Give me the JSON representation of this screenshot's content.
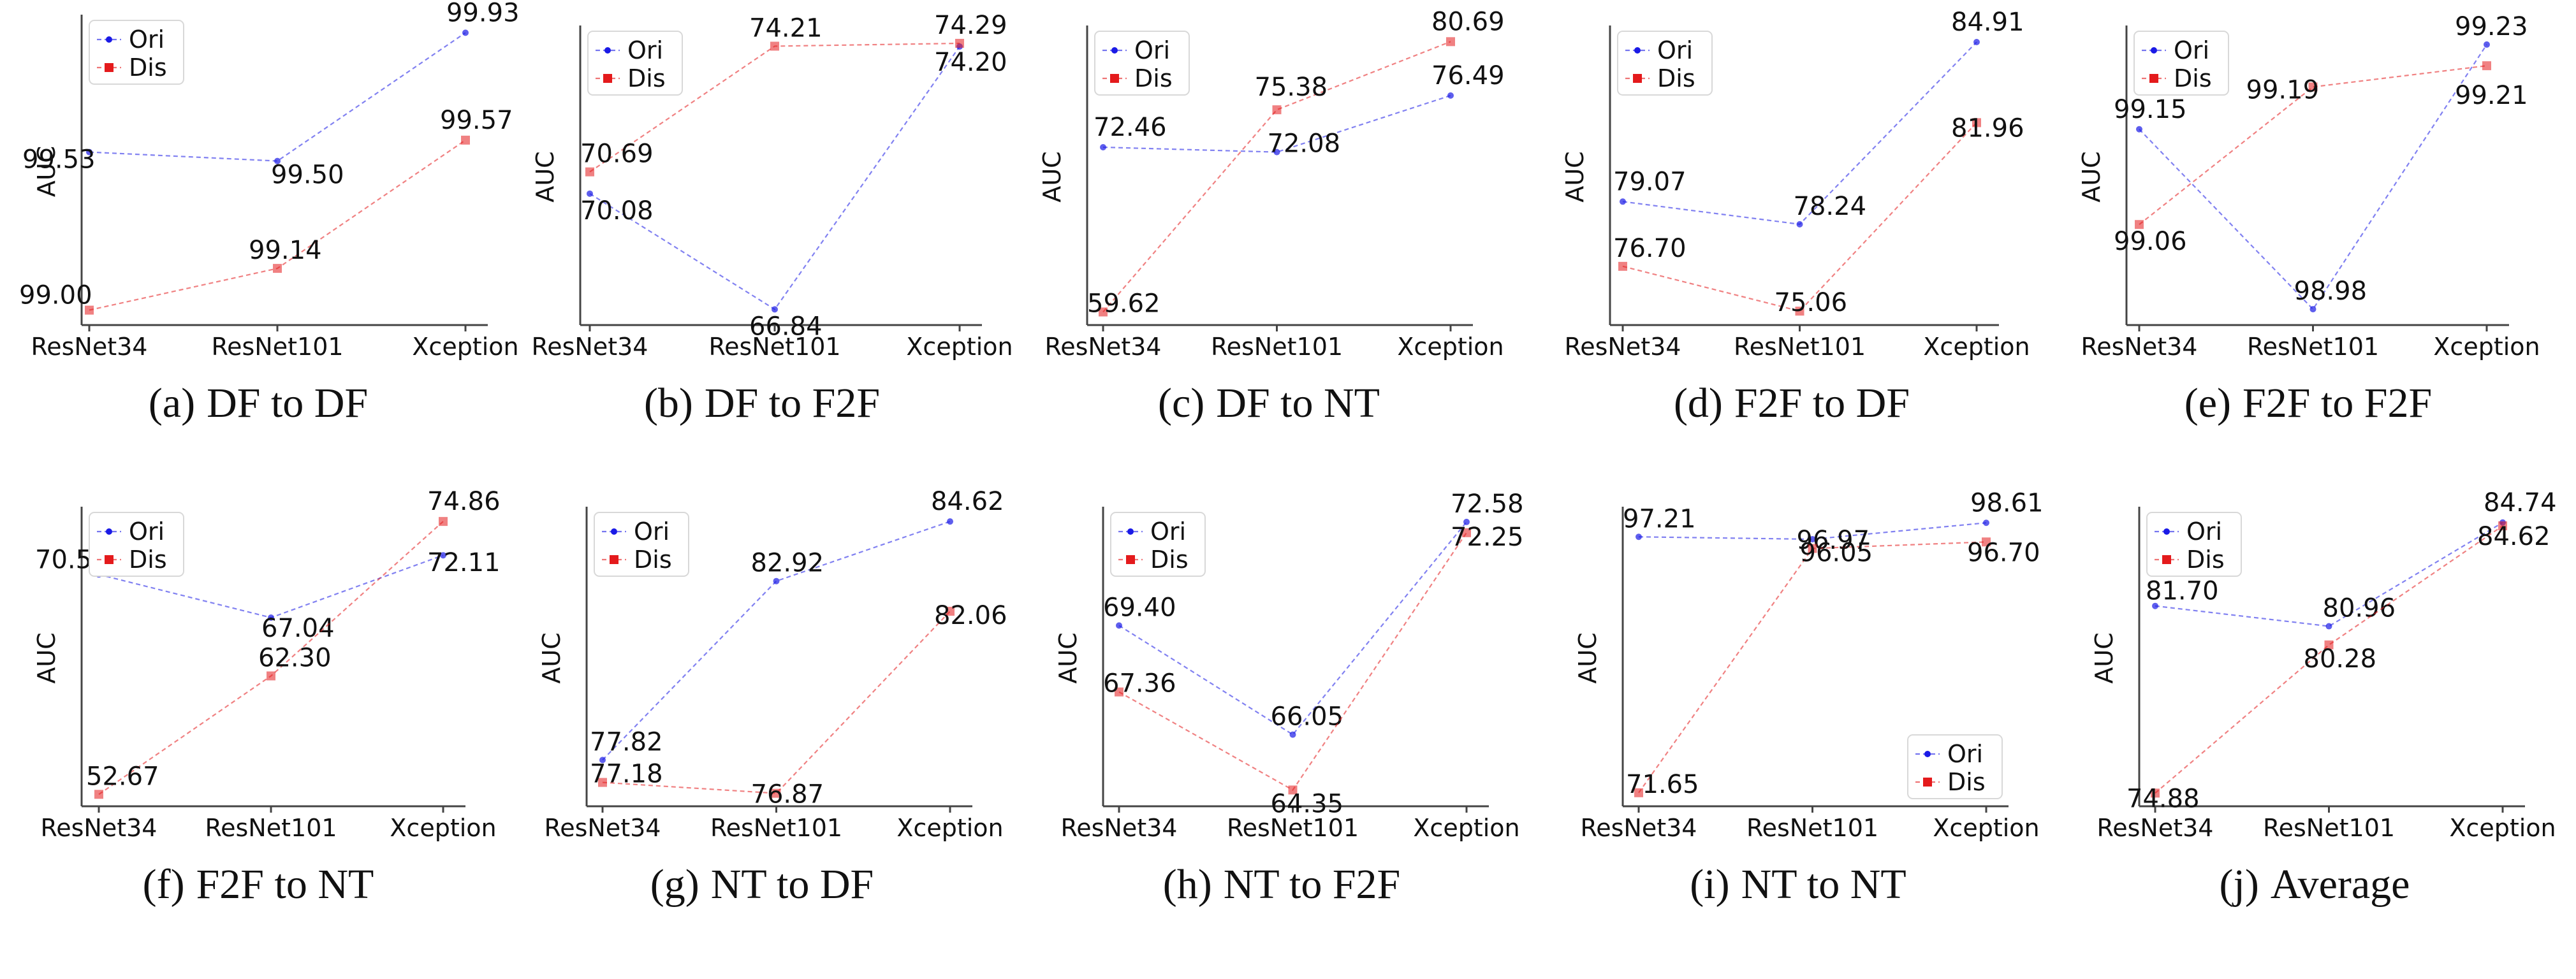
{
  "colors": {
    "ori": "#1a1ae6",
    "dis": "#e41a1c",
    "axis": "#444444",
    "text": "#111111"
  },
  "icons": {
    "ori_marker": "circle-dot",
    "dis_marker": "square"
  },
  "chart_data": [
    {
      "type": "line",
      "caption_letter": "(a)",
      "caption_text": "DF to DF",
      "ylabel": "AUC",
      "categories": [
        "ResNet34",
        "ResNet101",
        "Xception"
      ],
      "series": [
        {
          "name": "Ori",
          "values": [
            99.53,
            99.5,
            99.93
          ]
        },
        {
          "name": "Dis",
          "values": [
            99.0,
            99.14,
            99.57
          ]
        }
      ],
      "ylim": [
        98.95,
        99.98
      ],
      "legend": "top-left"
    },
    {
      "type": "line",
      "caption_letter": "(b)",
      "caption_text": "DF to F2F",
      "ylabel": "AUC",
      "categories": [
        "ResNet34",
        "ResNet101",
        "Xception"
      ],
      "series": [
        {
          "name": "Ori",
          "values": [
            70.08,
            66.84,
            74.2
          ]
        },
        {
          "name": "Dis",
          "values": [
            70.69,
            74.21,
            74.29
          ]
        }
      ],
      "ylim": [
        66.4,
        74.7
      ],
      "legend": "top-left"
    },
    {
      "type": "line",
      "caption_letter": "(c)",
      "caption_text": "DF to NT",
      "ylabel": "AUC",
      "categories": [
        "ResNet34",
        "ResNet101",
        "Xception"
      ],
      "series": [
        {
          "name": "Ori",
          "values": [
            72.46,
            72.08,
            76.49
          ]
        },
        {
          "name": "Dis",
          "values": [
            59.62,
            75.38,
            80.69
          ]
        }
      ],
      "ylim": [
        58.6,
        81.7
      ],
      "legend": "top-left"
    },
    {
      "type": "line",
      "caption_letter": "(d)",
      "caption_text": "F2F to DF",
      "ylabel": "AUC",
      "categories": [
        "ResNet34",
        "ResNet101",
        "Xception"
      ],
      "series": [
        {
          "name": "Ori",
          "values": [
            79.07,
            78.24,
            84.91
          ]
        },
        {
          "name": "Dis",
          "values": [
            76.7,
            75.06,
            81.96
          ]
        }
      ],
      "ylim": [
        74.55,
        85.4
      ],
      "legend": "top-left"
    },
    {
      "type": "line",
      "caption_letter": "(e)",
      "caption_text": "F2F to F2F",
      "ylabel": "AUC",
      "categories": [
        "ResNet34",
        "ResNet101",
        "Xception"
      ],
      "series": [
        {
          "name": "Ori",
          "values": [
            99.15,
            98.98,
            99.23
          ]
        },
        {
          "name": "Dis",
          "values": [
            99.06,
            99.19,
            99.21
          ]
        }
      ],
      "ylim": [
        98.965,
        99.245
      ],
      "legend": "top-left"
    },
    {
      "type": "line",
      "caption_letter": "(f)",
      "caption_text": "F2F to NT",
      "ylabel": "AUC",
      "categories": [
        "ResNet34",
        "ResNet101",
        "Xception"
      ],
      "series": [
        {
          "name": "Ori",
          "values": [
            70.55,
            67.04,
            72.11
          ]
        },
        {
          "name": "Dis",
          "values": [
            52.67,
            62.3,
            74.86
          ]
        }
      ],
      "ylim": [
        51.7,
        75.8
      ],
      "legend": "top-left"
    },
    {
      "type": "line",
      "caption_letter": "(g)",
      "caption_text": "NT to DF",
      "ylabel": "AUC",
      "categories": [
        "ResNet34",
        "ResNet101",
        "Xception"
      ],
      "series": [
        {
          "name": "Ori",
          "values": [
            77.82,
            82.92,
            84.62
          ]
        },
        {
          "name": "Dis",
          "values": [
            77.18,
            76.87,
            82.06
          ]
        }
      ],
      "ylim": [
        76.5,
        84.95
      ],
      "legend": "top-left"
    },
    {
      "type": "line",
      "caption_letter": "(h)",
      "caption_text": "NT to F2F",
      "ylabel": "AUC",
      "categories": [
        "ResNet34",
        "ResNet101",
        "Xception"
      ],
      "series": [
        {
          "name": "Ori",
          "values": [
            69.4,
            66.05,
            72.58
          ]
        },
        {
          "name": "Dis",
          "values": [
            67.36,
            64.35,
            72.25
          ]
        }
      ],
      "ylim": [
        63.85,
        72.95
      ],
      "legend": "top-left"
    },
    {
      "type": "line",
      "caption_letter": "(i)",
      "caption_text": "NT to NT",
      "ylabel": "AUC",
      "categories": [
        "ResNet34",
        "ResNet101",
        "Xception"
      ],
      "series": [
        {
          "name": "Ori",
          "values": [
            97.21,
            96.97,
            98.61
          ]
        },
        {
          "name": "Dis",
          "values": [
            71.65,
            96.05,
            96.7
          ]
        }
      ],
      "ylim": [
        70.3,
        99.9
      ],
      "legend": "bottom-right"
    },
    {
      "type": "line",
      "caption_letter": "(j)",
      "caption_text": "Average",
      "ylabel": "AUC",
      "categories": [
        "ResNet34",
        "ResNet101",
        "Xception"
      ],
      "series": [
        {
          "name": "Ori",
          "values": [
            81.7,
            80.96,
            84.74
          ]
        },
        {
          "name": "Dis",
          "values": [
            74.88,
            80.28,
            84.62
          ]
        }
      ],
      "ylim": [
        74.4,
        85.2
      ],
      "legend": "top-left"
    }
  ]
}
